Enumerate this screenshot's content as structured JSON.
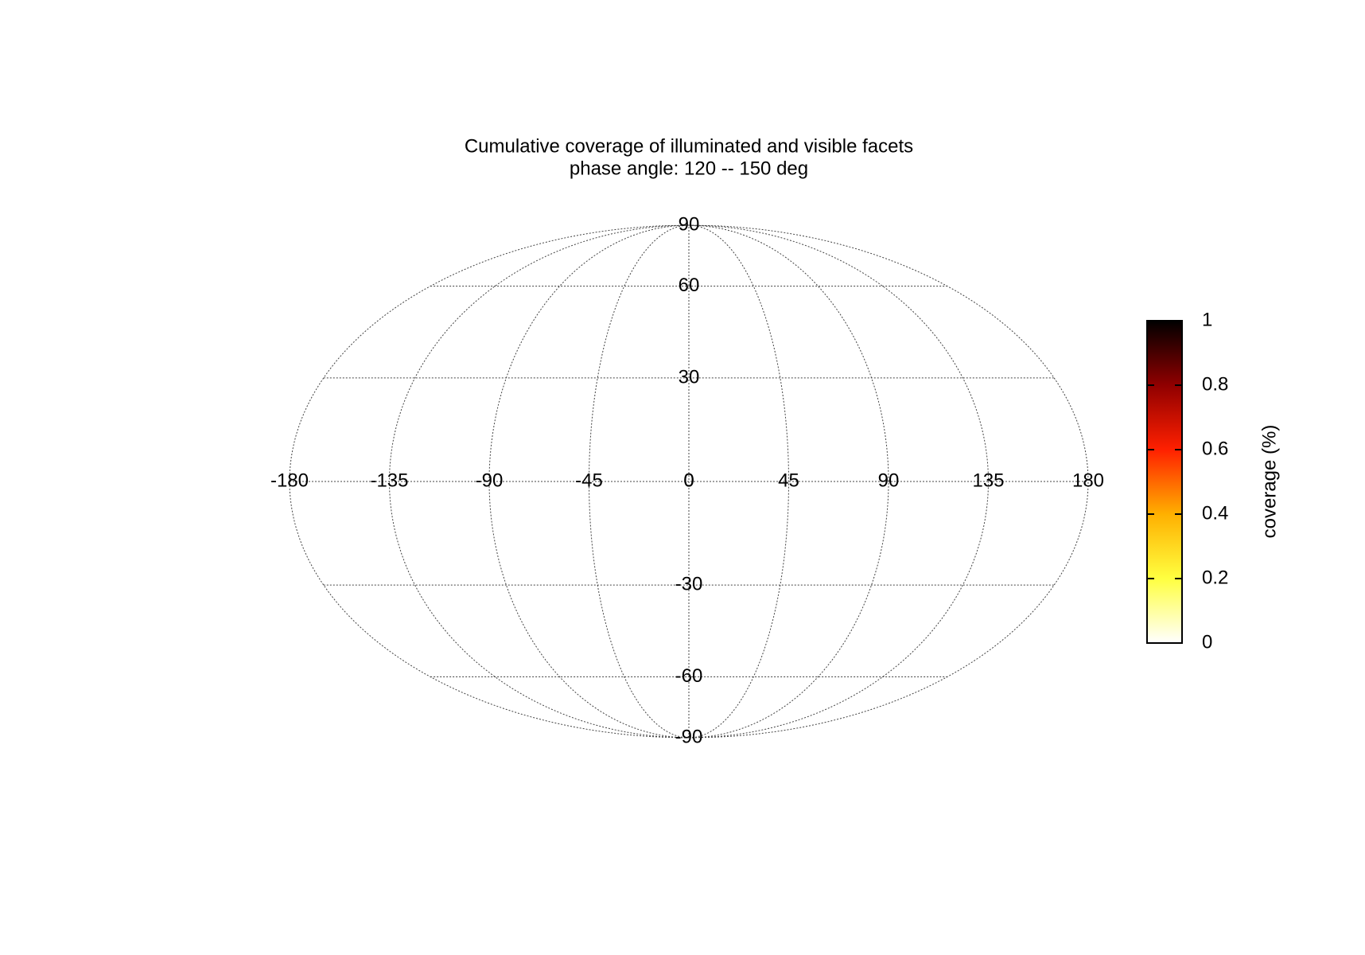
{
  "chart_data": {
    "type": "map",
    "projection": "mollweide",
    "title": "Cumulative coverage of illuminated and visible facets",
    "subtitle": "phase angle: 120 -- 150 deg",
    "xlim": [
      -180,
      180
    ],
    "xticks": [
      -180,
      -135,
      -90,
      -45,
      0,
      45,
      90,
      135,
      180
    ],
    "ylim": [
      -90,
      90
    ],
    "yticks": [
      -90,
      -60,
      -30,
      0,
      30,
      60,
      90
    ],
    "grid": true,
    "colorbar": {
      "label": "coverage (%)",
      "clim": [
        0,
        1
      ],
      "ticks": [
        0,
        0.2,
        0.4,
        0.6,
        0.8,
        1
      ],
      "colormap": [
        "#ffffff",
        "#ffff40",
        "#ffb000",
        "#ff2000",
        "#900000",
        "#000000"
      ]
    }
  }
}
